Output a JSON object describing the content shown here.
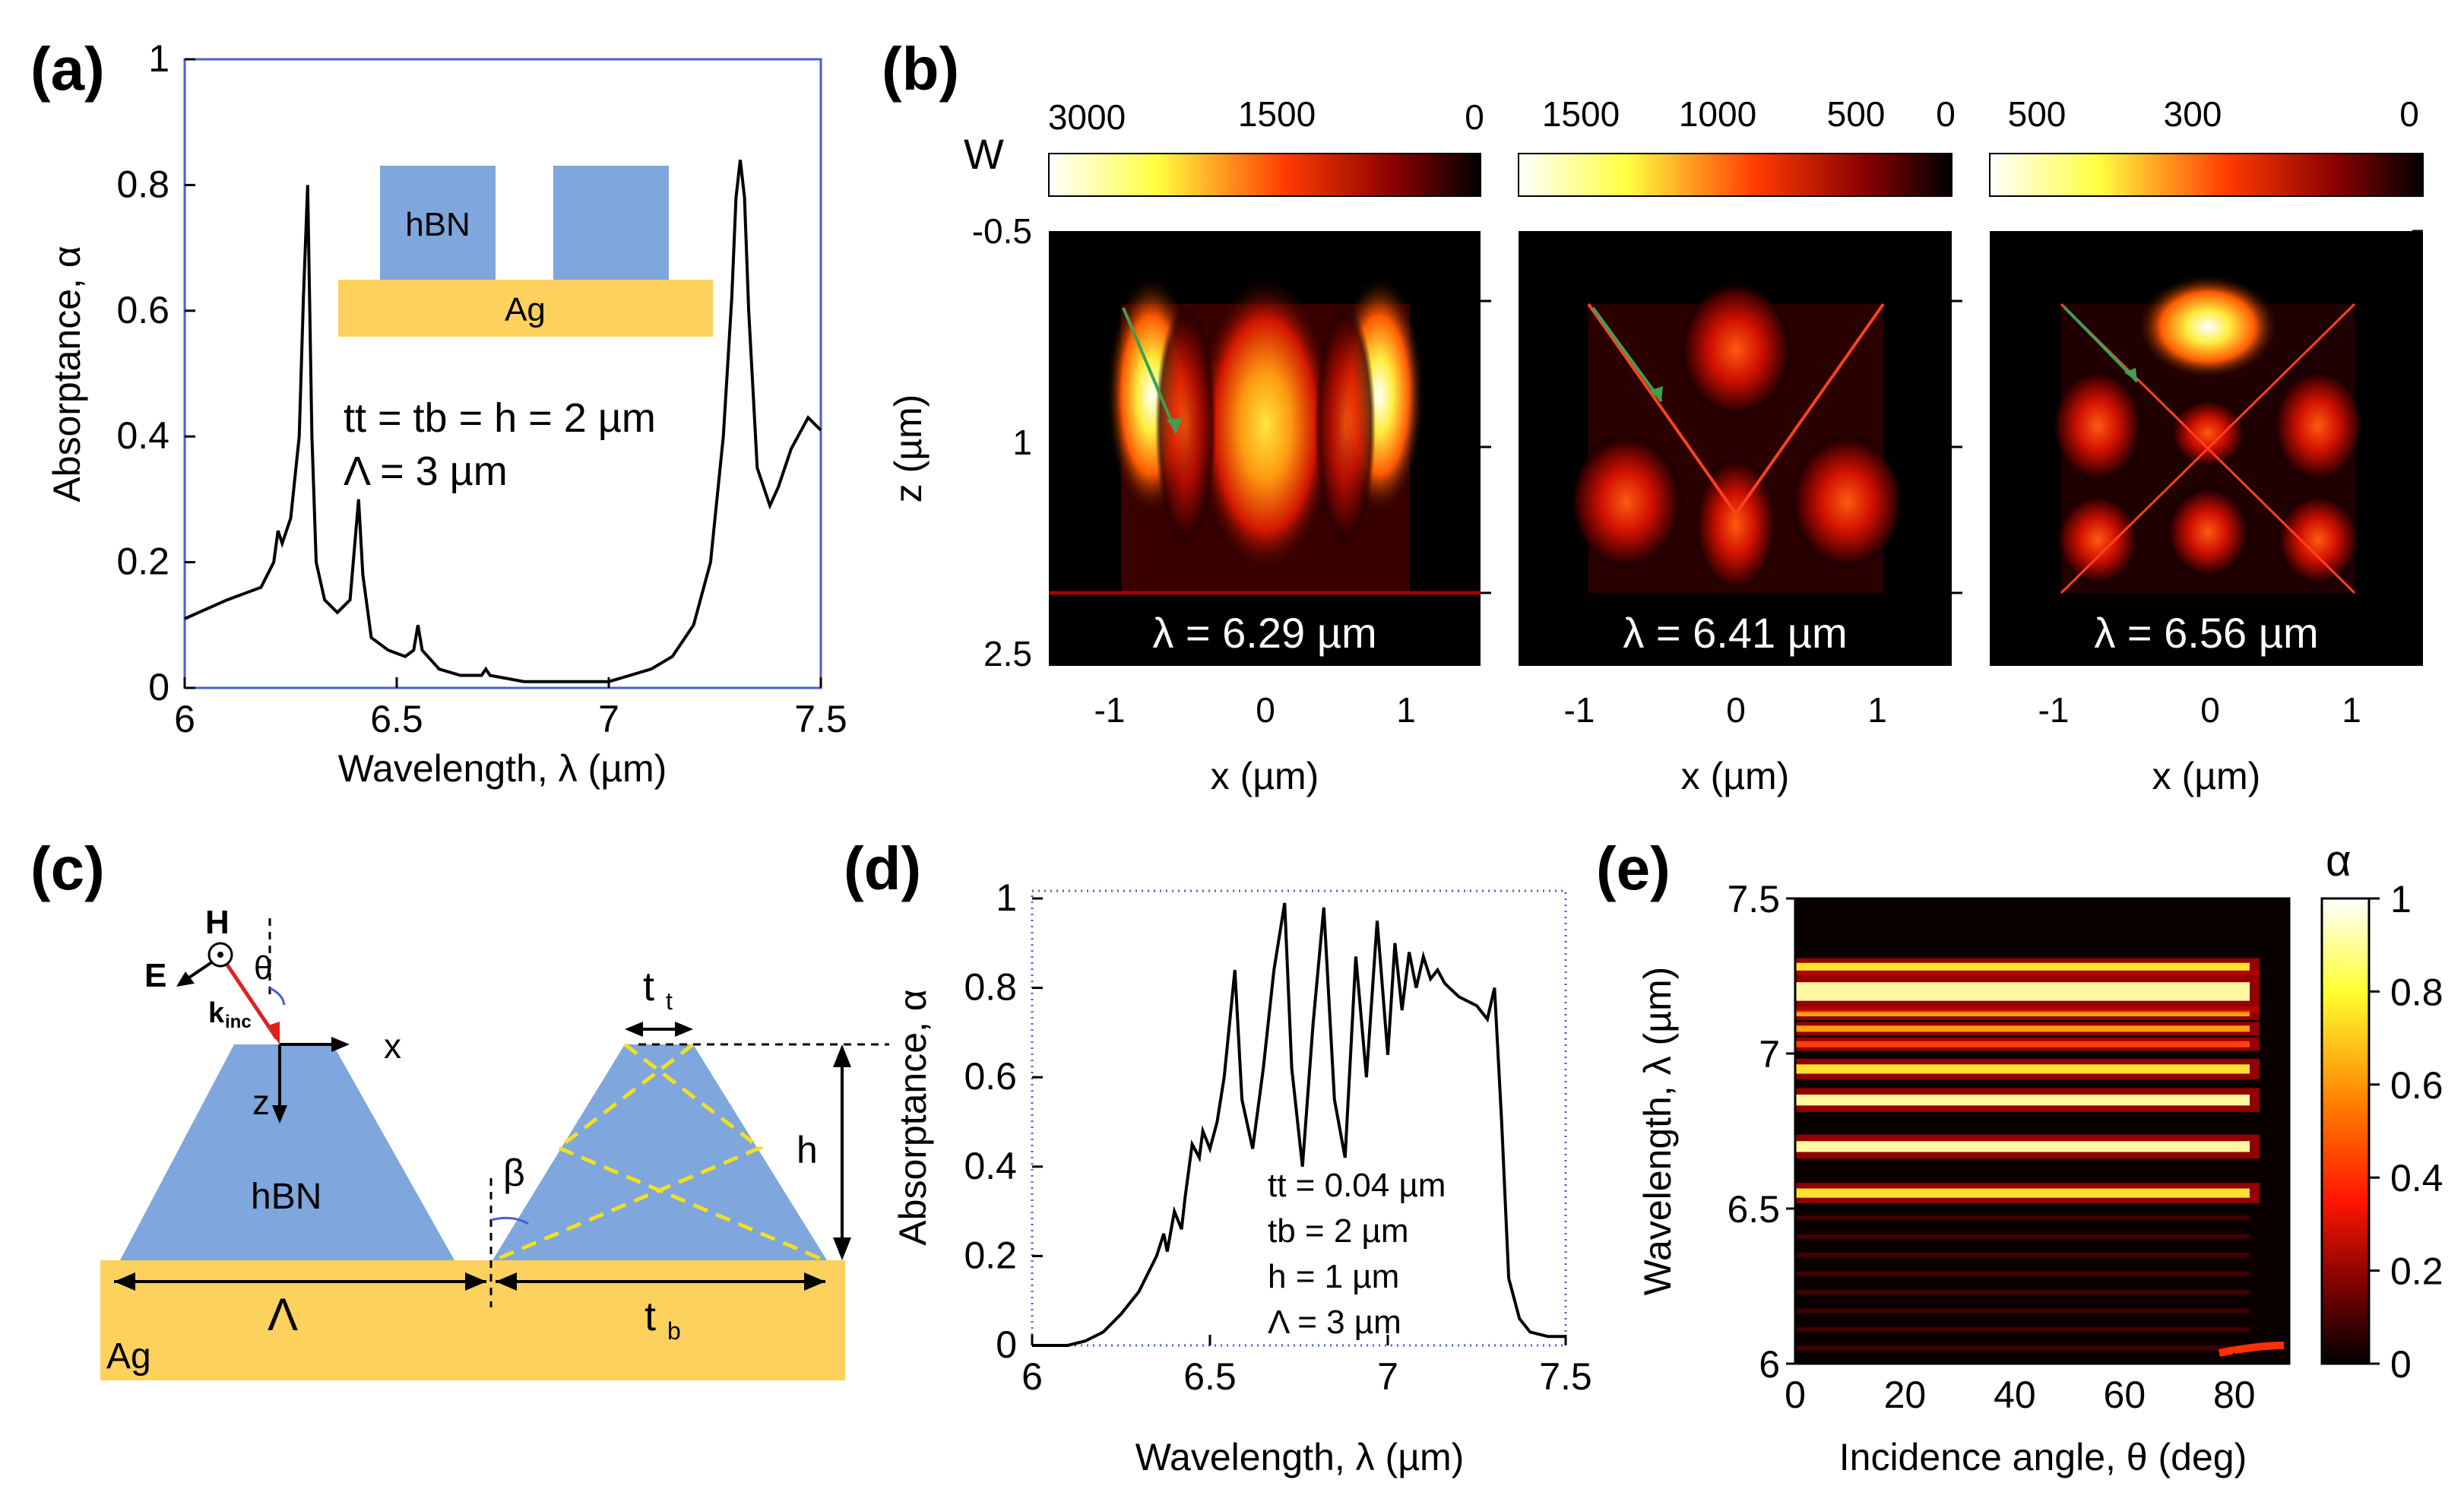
{
  "panels": {
    "a": "(a)",
    "b": "(b)",
    "c": "(c)",
    "d": "(d)",
    "e": "(e)"
  },
  "panel_a": {
    "inset": {
      "hbn": "hBN",
      "ag": "Ag"
    },
    "params": [
      "tt = tb = h = 2 µm",
      "Λ = 3 µm"
    ],
    "colors": {
      "hbn": "#7fa6dd",
      "ag": "#fcd15d",
      "line": "#000000"
    }
  },
  "panel_b": {
    "unit": "W",
    "z_label": "z (µm)",
    "x_label": "x (µm)",
    "z_ticks": [
      "-0.5",
      "1",
      "2.5"
    ],
    "x_ticks": [
      "-1",
      "0",
      "1"
    ],
    "maps": [
      {
        "wavelength": "λ = 6.29 µm",
        "cbar": [
          "3000",
          "1500",
          "0"
        ]
      },
      {
        "wavelength": "λ = 6.41 µm",
        "cbar": [
          "1500",
          "1000",
          "500",
          "0"
        ]
      },
      {
        "wavelength": "λ = 6.56 µm",
        "cbar": [
          "500",
          "300",
          "0"
        ]
      }
    ]
  },
  "panel_c": {
    "H": "H",
    "E": "E",
    "theta": "θ",
    "k": "k",
    "k_sub": "inc",
    "x": "x",
    "z": "z",
    "hbn": "hBN",
    "beta": "β",
    "h": "h",
    "Lambda": "Λ",
    "tb_main": "t",
    "tb_sub": "b",
    "tt_main": "t",
    "tt_sub": "t",
    "ag": "Ag"
  },
  "panel_d": {
    "params": [
      "tt = 0.04 µm",
      "tb = 2 µm",
      "h = 1 µm",
      "Λ = 3 µm"
    ]
  },
  "panel_e": {
    "alpha": "α",
    "cbar_ticks": [
      "1",
      "0.8",
      "0.6",
      "0.4",
      "0.2",
      "0"
    ]
  },
  "chart_data": [
    {
      "type": "line",
      "id": "a",
      "title": "",
      "xlabel": "Wavelength, λ (µm)",
      "ylabel": "Absorptance, α",
      "xlim": [
        6,
        7.5
      ],
      "ylim": [
        0,
        1
      ],
      "xticks": [
        "6",
        "6.5",
        "7",
        "7.5"
      ],
      "yticks": [
        "0",
        "0.2",
        "0.4",
        "0.6",
        "0.8",
        "1"
      ],
      "series": [
        {
          "name": "absorptance",
          "x": [
            6.0,
            6.1,
            6.18,
            6.21,
            6.22,
            6.23,
            6.25,
            6.27,
            6.28,
            6.29,
            6.3,
            6.31,
            6.33,
            6.36,
            6.39,
            6.4,
            6.41,
            6.42,
            6.44,
            6.48,
            6.52,
            6.54,
            6.55,
            6.56,
            6.6,
            6.65,
            6.7,
            6.71,
            6.72,
            6.8,
            6.9,
            7.0,
            7.05,
            7.1,
            7.15,
            7.2,
            7.24,
            7.27,
            7.29,
            7.3,
            7.31,
            7.32,
            7.33,
            7.35,
            7.38,
            7.4,
            7.43,
            7.47,
            7.5
          ],
          "values": [
            0.11,
            0.14,
            0.16,
            0.2,
            0.25,
            0.23,
            0.27,
            0.4,
            0.62,
            0.8,
            0.4,
            0.2,
            0.14,
            0.12,
            0.14,
            0.22,
            0.3,
            0.18,
            0.08,
            0.06,
            0.05,
            0.06,
            0.1,
            0.06,
            0.03,
            0.02,
            0.02,
            0.03,
            0.02,
            0.01,
            0.01,
            0.01,
            0.02,
            0.03,
            0.05,
            0.1,
            0.2,
            0.4,
            0.62,
            0.78,
            0.84,
            0.78,
            0.6,
            0.35,
            0.29,
            0.32,
            0.38,
            0.43,
            0.41
          ]
        }
      ]
    },
    {
      "type": "line",
      "id": "d",
      "title": "",
      "xlabel": "Wavelength, λ (µm)",
      "ylabel": "Absorptance, α",
      "xlim": [
        6,
        7.5
      ],
      "ylim": [
        0,
        1
      ],
      "xticks": [
        "6",
        "6.5",
        "7",
        "7.5"
      ],
      "yticks": [
        "0",
        "0.2",
        "0.4",
        "0.6",
        "0.8",
        "1"
      ],
      "series": [
        {
          "name": "absorptance",
          "x": [
            6.0,
            6.1,
            6.15,
            6.2,
            6.25,
            6.3,
            6.35,
            6.37,
            6.38,
            6.4,
            6.42,
            6.43,
            6.45,
            6.47,
            6.48,
            6.5,
            6.52,
            6.54,
            6.57,
            6.59,
            6.62,
            6.65,
            6.68,
            6.71,
            6.73,
            6.76,
            6.79,
            6.82,
            6.85,
            6.88,
            6.91,
            6.94,
            6.97,
            7.0,
            7.02,
            7.04,
            7.06,
            7.08,
            7.1,
            7.12,
            7.14,
            7.16,
            7.2,
            7.25,
            7.28,
            7.3,
            7.32,
            7.34,
            7.37,
            7.4,
            7.45,
            7.5
          ],
          "values": [
            0.0,
            0.0,
            0.01,
            0.03,
            0.07,
            0.12,
            0.2,
            0.25,
            0.21,
            0.3,
            0.26,
            0.33,
            0.45,
            0.42,
            0.48,
            0.44,
            0.5,
            0.6,
            0.84,
            0.55,
            0.44,
            0.62,
            0.84,
            0.99,
            0.62,
            0.4,
            0.72,
            0.98,
            0.55,
            0.42,
            0.87,
            0.6,
            0.95,
            0.65,
            0.9,
            0.75,
            0.88,
            0.8,
            0.87,
            0.82,
            0.84,
            0.81,
            0.78,
            0.76,
            0.73,
            0.8,
            0.5,
            0.15,
            0.06,
            0.03,
            0.02,
            0.02
          ]
        }
      ]
    },
    {
      "type": "heatmap",
      "id": "e",
      "xlabel": "Incidence angle, θ (deg)",
      "ylabel": "Wavelength, λ (µm)",
      "xlim": [
        0,
        90
      ],
      "ylim": [
        6,
        7.5
      ],
      "xticks": [
        "0",
        "20",
        "40",
        "60",
        "80"
      ],
      "yticks": [
        "6",
        "6.5",
        "7",
        "7.5"
      ],
      "zlim": [
        0,
        1
      ],
      "bands": [
        {
          "center": 6.55,
          "width": 0.03,
          "peak": 0.85
        },
        {
          "center": 6.7,
          "width": 0.035,
          "peak": 0.95
        },
        {
          "center": 6.85,
          "width": 0.035,
          "peak": 0.95
        },
        {
          "center": 6.95,
          "width": 0.03,
          "peak": 0.9
        },
        {
          "center": 7.03,
          "width": 0.02,
          "peak": 0.7
        },
        {
          "center": 7.08,
          "width": 0.02,
          "peak": 0.75
        },
        {
          "center": 7.13,
          "width": 0.02,
          "peak": 0.8
        },
        {
          "center": 7.2,
          "width": 0.06,
          "peak": 0.95
        },
        {
          "center": 7.28,
          "width": 0.025,
          "peak": 0.9
        }
      ]
    }
  ]
}
